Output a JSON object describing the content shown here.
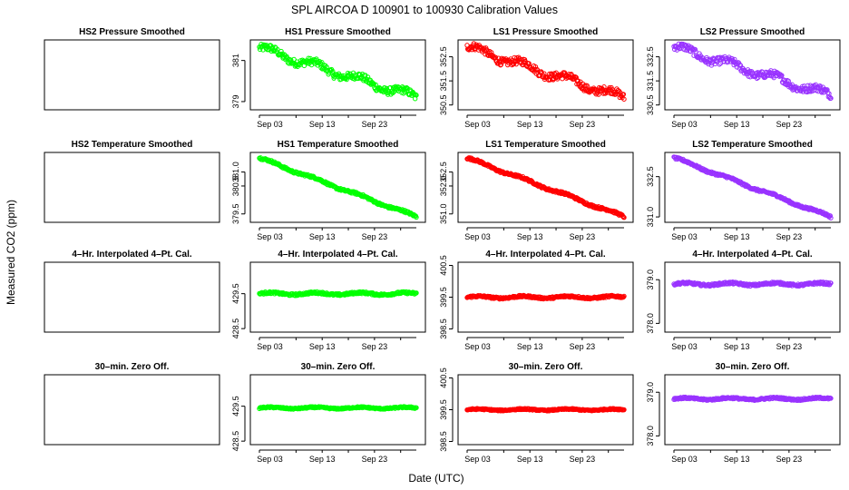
{
  "figure": {
    "title": "SPL   AIRCOA D   100901 to 100930   Calibration Values",
    "ylabel": "Measured CO2 (ppm)",
    "xlabel": "Date (UTC)"
  },
  "chart_data": [
    {
      "type": "scatter",
      "title": "HS2 Pressure Smoothed",
      "series": [],
      "yticks": [],
      "xticks": [],
      "color": "#00cc00"
    },
    {
      "type": "scatter",
      "title": "HS1 Pressure Smoothed",
      "color": "#00ff00",
      "ylim": [
        378.6,
        382.0
      ],
      "yticks": [
        "379",
        "381"
      ],
      "xticks": [
        "Sep 03",
        "Sep 13",
        "Sep 23"
      ],
      "trend": {
        "start": 381.6,
        "end": 379.2,
        "noise": 0.35
      },
      "x_range_days": [
        1,
        31
      ]
    },
    {
      "type": "scatter",
      "title": "LS1 Pressure Smoothed",
      "color": "#ff0000",
      "ylim": [
        350.3,
        353.2
      ],
      "yticks": [
        "350.5",
        "351.5",
        "352.5"
      ],
      "xticks": [
        "Sep 03",
        "Sep 13",
        "Sep 23"
      ],
      "trend": {
        "start": 352.9,
        "end": 350.8,
        "noise": 0.3
      },
      "x_range_days": [
        1,
        31
      ]
    },
    {
      "type": "scatter",
      "title": "LS2 Pressure Smoothed",
      "color": "#9933ff",
      "ylim": [
        330.3,
        333.2
      ],
      "yticks": [
        "330.5",
        "331.5",
        "332.5"
      ],
      "xticks": [
        "Sep 03",
        "Sep 13",
        "Sep 23"
      ],
      "trend": {
        "start": 332.9,
        "end": 330.9,
        "noise": 0.3
      },
      "x_range_days": [
        1,
        31
      ]
    },
    {
      "type": "scatter",
      "title": "HS2 Temperature Smoothed",
      "series": [],
      "yticks": [],
      "xticks": [],
      "color": "#00cc00"
    },
    {
      "type": "scatter",
      "title": "HS1 Temperature Smoothed",
      "color": "#00ff00",
      "ylim": [
        379.2,
        381.7
      ],
      "yticks": [
        "379.5",
        "380.5",
        "381.0"
      ],
      "ytick_values": [
        379.5,
        380.5,
        381.0
      ],
      "xticks": [
        "Sep 03",
        "Sep 13",
        "Sep 23"
      ],
      "trend": {
        "start": 381.5,
        "end": 379.4,
        "noise": 0.08
      },
      "x_range_days": [
        1,
        31
      ]
    },
    {
      "type": "scatter",
      "title": "LS1 Temperature Smoothed",
      "color": "#ff0000",
      "ylim": [
        350.7,
        353.2
      ],
      "yticks": [
        "351.0",
        "352.0",
        "352.5"
      ],
      "ytick_values": [
        351.0,
        352.0,
        352.5
      ],
      "xticks": [
        "Sep 03",
        "Sep 13",
        "Sep 23"
      ],
      "trend": {
        "start": 353.0,
        "end": 350.9,
        "noise": 0.08
      },
      "x_range_days": [
        1,
        31
      ]
    },
    {
      "type": "scatter",
      "title": "LS2 Temperature Smoothed",
      "color": "#9933ff",
      "ylim": [
        330.8,
        333.4
      ],
      "yticks": [
        "331.0",
        "332.5"
      ],
      "ytick_values": [
        331.0,
        332.5
      ],
      "xticks": [
        "Sep 03",
        "Sep 13",
        "Sep 23"
      ],
      "trend": {
        "start": 333.2,
        "end": 331.0,
        "noise": 0.08
      },
      "x_range_days": [
        1,
        31
      ]
    },
    {
      "type": "scatter",
      "title": "4–Hr. Interpolated 4–Pt. Cal.",
      "series": [],
      "yticks": [],
      "xticks": [],
      "color": "#00cc00"
    },
    {
      "type": "scatter",
      "title": "4–Hr. Interpolated 4–Pt. Cal.",
      "color": "#00ff00",
      "ylim": [
        428.4,
        430.4
      ],
      "yticks": [
        "428.5",
        "429.5"
      ],
      "ytick_values": [
        428.5,
        429.5
      ],
      "xticks": [
        "Sep 03",
        "Sep 13",
        "Sep 23"
      ],
      "trend": {
        "start": 429.5,
        "end": 429.5,
        "noise": 0.06
      },
      "x_range_days": [
        1,
        31
      ]
    },
    {
      "type": "scatter",
      "title": "4–Hr. Interpolated 4–Pt. Cal.",
      "color": "#ff0000",
      "ylim": [
        398.4,
        400.6
      ],
      "yticks": [
        "398.5",
        "399.5",
        "400.5"
      ],
      "ytick_values": [
        398.5,
        399.5,
        400.5
      ],
      "xticks": [
        "Sep 03",
        "Sep 13",
        "Sep 23"
      ],
      "trend": {
        "start": 399.5,
        "end": 399.5,
        "noise": 0.06
      },
      "x_range_days": [
        1,
        31
      ]
    },
    {
      "type": "scatter",
      "title": "4–Hr. Interpolated 4–Pt. Cal.",
      "color": "#9933ff",
      "ylim": [
        377.8,
        379.4
      ],
      "yticks": [
        "378.0",
        "379.0"
      ],
      "ytick_values": [
        378.0,
        379.0
      ],
      "xticks": [
        "Sep 03",
        "Sep 13",
        "Sep 23"
      ],
      "trend": {
        "start": 378.9,
        "end": 378.9,
        "noise": 0.05
      },
      "x_range_days": [
        1,
        31
      ]
    },
    {
      "type": "scatter",
      "title": "30–min. Zero Off.",
      "series": [],
      "yticks": [],
      "xticks": [],
      "color": "#00cc00"
    },
    {
      "type": "scatter",
      "title": "30–min. Zero Off.",
      "color": "#00ff00",
      "ylim": [
        428.4,
        430.4
      ],
      "yticks": [
        "428.5",
        "429.5"
      ],
      "ytick_values": [
        428.5,
        429.5
      ],
      "xticks": [
        "Sep 03",
        "Sep 13",
        "Sep 23"
      ],
      "trend": {
        "start": 429.45,
        "end": 429.45,
        "noise": 0.04
      },
      "x_range_days": [
        1,
        31
      ]
    },
    {
      "type": "scatter",
      "title": "30–min. Zero Off.",
      "color": "#ff0000",
      "ylim": [
        398.4,
        400.6
      ],
      "yticks": [
        "398.5",
        "399.5",
        "400.5"
      ],
      "ytick_values": [
        398.5,
        399.5,
        400.5
      ],
      "xticks": [
        "Sep 03",
        "Sep 13",
        "Sep 23"
      ],
      "trend": {
        "start": 399.5,
        "end": 399.5,
        "noise": 0.04
      },
      "x_range_days": [
        1,
        31
      ]
    },
    {
      "type": "scatter",
      "title": "30–min. Zero Off.",
      "color": "#9933ff",
      "ylim": [
        377.8,
        379.4
      ],
      "yticks": [
        "378.0",
        "379.0"
      ],
      "ytick_values": [
        378.0,
        379.0
      ],
      "xticks": [
        "Sep 03",
        "Sep 13",
        "Sep 23"
      ],
      "trend": {
        "start": 378.85,
        "end": 378.85,
        "noise": 0.04
      },
      "x_range_days": [
        1,
        31
      ]
    }
  ]
}
